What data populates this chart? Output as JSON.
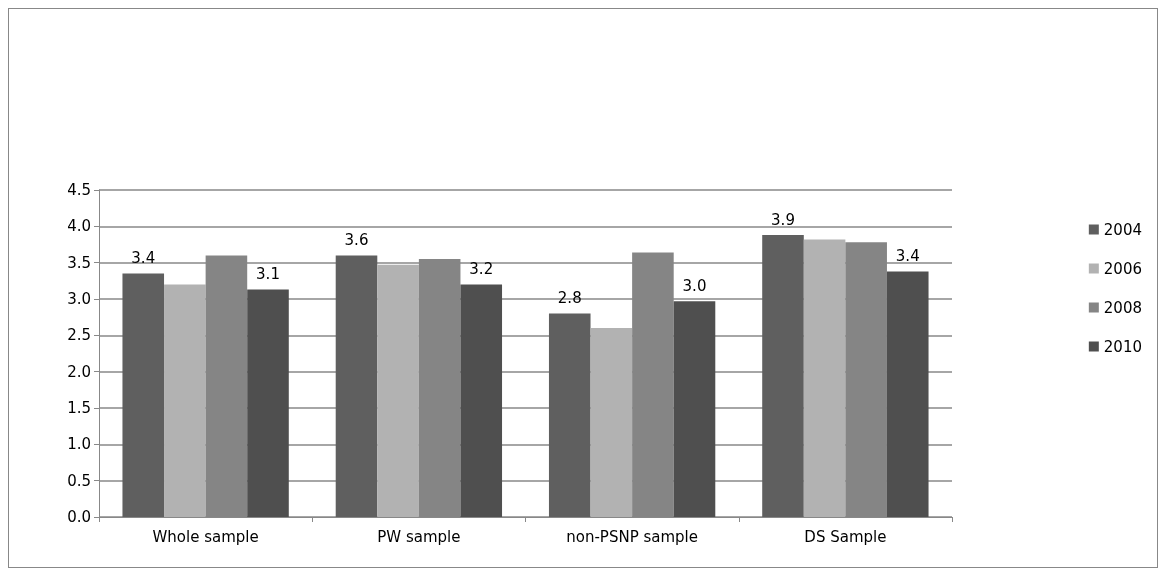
{
  "chart_data": {
    "type": "bar",
    "categories": [
      "Whole sample",
      "PW sample",
      "non-PSNP sample",
      "DS Sample"
    ],
    "series": [
      {
        "name": "2004",
        "color": "#5f5f5f",
        "values": [
          3.35,
          3.6,
          2.8,
          3.88
        ],
        "value_labels": [
          "3.4",
          "3.6",
          "2.8",
          "3.9"
        ]
      },
      {
        "name": "2006",
        "color": "#b2b2b2",
        "values": [
          3.2,
          3.47,
          2.6,
          3.82
        ]
      },
      {
        "name": "2008",
        "color": "#858585",
        "values": [
          3.6,
          3.55,
          3.64,
          3.78
        ]
      },
      {
        "name": "2010",
        "color": "#4f4f4f",
        "values": [
          3.13,
          3.2,
          2.97,
          3.38
        ],
        "value_labels": [
          "3.1",
          "3.2",
          "3.0",
          "3.4"
        ]
      }
    ],
    "ylim": [
      0,
      4.5
    ],
    "yticks": [
      {
        "value": 0,
        "label": "0.0"
      },
      0.5,
      {
        "value": 1,
        "label": "1.0"
      },
      1.5,
      {
        "value": 2,
        "label": "2.0"
      },
      2.5,
      {
        "value": 3,
        "label": "3.0"
      },
      3.5,
      {
        "value": 4,
        "label": "4.0"
      },
      4.5
    ],
    "grid": "y",
    "legend": "right"
  }
}
